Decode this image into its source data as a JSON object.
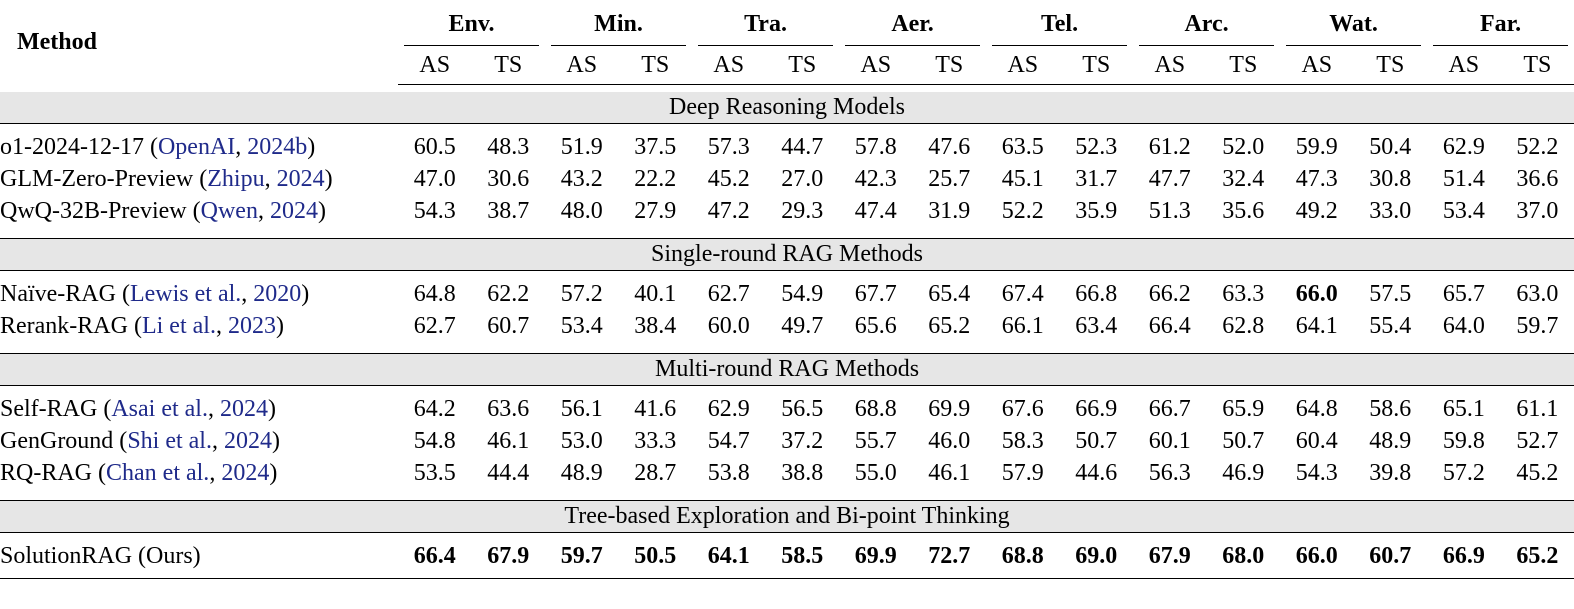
{
  "header": {
    "method_label": "Method",
    "groups": [
      "Env.",
      "Min.",
      "Tra.",
      "Aer.",
      "Tel.",
      "Arc.",
      "Wat.",
      "Far."
    ],
    "metrics": [
      "AS",
      "TS"
    ]
  },
  "sections": [
    {
      "title": "Deep Reasoning Models",
      "rows": [
        {
          "name": "o1-2024-12-17 (",
          "cite_a": "OpenAI",
          "sep": ", ",
          "cite_b": "2024b",
          "close": ")",
          "values": [
            "60.5",
            "48.3",
            "51.9",
            "37.5",
            "57.3",
            "44.7",
            "57.8",
            "47.6",
            "63.5",
            "52.3",
            "61.2",
            "52.0",
            "59.9",
            "50.4",
            "62.9",
            "52.2"
          ]
        },
        {
          "name": "GLM-Zero-Preview (",
          "cite_a": "Zhipu",
          "sep": ", ",
          "cite_b": "2024",
          "close": ")",
          "values": [
            "47.0",
            "30.6",
            "43.2",
            "22.2",
            "45.2",
            "27.0",
            "42.3",
            "25.7",
            "45.1",
            "31.7",
            "47.7",
            "32.4",
            "47.3",
            "30.8",
            "51.4",
            "36.6"
          ]
        },
        {
          "name": "QwQ-32B-Preview (",
          "cite_a": "Qwen",
          "sep": ", ",
          "cite_b": "2024",
          "close": ")",
          "values": [
            "54.3",
            "38.7",
            "48.0",
            "27.9",
            "47.2",
            "29.3",
            "47.4",
            "31.9",
            "52.2",
            "35.9",
            "51.3",
            "35.6",
            "49.2",
            "33.0",
            "53.4",
            "37.0"
          ]
        }
      ]
    },
    {
      "title": "Single-round RAG Methods",
      "rows": [
        {
          "name": "Naïve-RAG (",
          "cite_a": "Lewis et al.",
          "sep": ", ",
          "cite_b": "2020",
          "close": ")",
          "values": [
            "64.8",
            "62.2",
            "57.2",
            "40.1",
            "62.7",
            "54.9",
            "67.7",
            "65.4",
            "67.4",
            "66.8",
            "66.2",
            "63.3",
            "66.0",
            "57.5",
            "65.7",
            "63.0"
          ],
          "bold_idx": [
            12
          ]
        },
        {
          "name": "Rerank-RAG (",
          "cite_a": "Li et al.",
          "sep": ", ",
          "cite_b": "2023",
          "close": ")",
          "values": [
            "62.7",
            "60.7",
            "53.4",
            "38.4",
            "60.0",
            "49.7",
            "65.6",
            "65.2",
            "66.1",
            "63.4",
            "66.4",
            "62.8",
            "64.1",
            "55.4",
            "64.0",
            "59.7"
          ]
        }
      ]
    },
    {
      "title": "Multi-round RAG Methods",
      "rows": [
        {
          "name": "Self-RAG (",
          "cite_a": "Asai et al.",
          "sep": ", ",
          "cite_b": "2024",
          "close": ")",
          "values": [
            "64.2",
            "63.6",
            "56.1",
            "41.6",
            "62.9",
            "56.5",
            "68.8",
            "69.9",
            "67.6",
            "66.9",
            "66.7",
            "65.9",
            "64.8",
            "58.6",
            "65.1",
            "61.1"
          ]
        },
        {
          "name": "GenGround (",
          "cite_a": "Shi et al.",
          "sep": ", ",
          "cite_b": "2024",
          "close": ")",
          "values": [
            "54.8",
            "46.1",
            "53.0",
            "33.3",
            "54.7",
            "37.2",
            "55.7",
            "46.0",
            "58.3",
            "50.7",
            "60.1",
            "50.7",
            "60.4",
            "48.9",
            "59.8",
            "52.7"
          ]
        },
        {
          "name": "RQ-RAG (",
          "cite_a": "Chan et al.",
          "sep": ", ",
          "cite_b": "2024",
          "close": ")",
          "values": [
            "53.5",
            "44.4",
            "48.9",
            "28.7",
            "53.8",
            "38.8",
            "55.0",
            "46.1",
            "57.9",
            "44.6",
            "56.3",
            "46.9",
            "54.3",
            "39.8",
            "57.2",
            "45.2"
          ]
        }
      ]
    },
    {
      "title": "Tree-based Exploration and Bi-point Thinking",
      "rows": [
        {
          "name": "SolutionRAG (Ours)",
          "cite_a": "",
          "sep": "",
          "cite_b": "",
          "close": "",
          "values": [
            "66.4",
            "67.9",
            "59.7",
            "50.5",
            "64.1",
            "58.5",
            "69.9",
            "72.7",
            "68.8",
            "69.0",
            "67.9",
            "68.0",
            "66.0",
            "60.7",
            "66.9",
            "65.2"
          ],
          "bold_idx": [
            0,
            1,
            2,
            3,
            4,
            5,
            6,
            7,
            8,
            9,
            10,
            11,
            12,
            13,
            14,
            15
          ]
        }
      ]
    }
  ],
  "colors": {
    "citation": "#1f2a8a",
    "section_band": "#e6e6e6"
  }
}
